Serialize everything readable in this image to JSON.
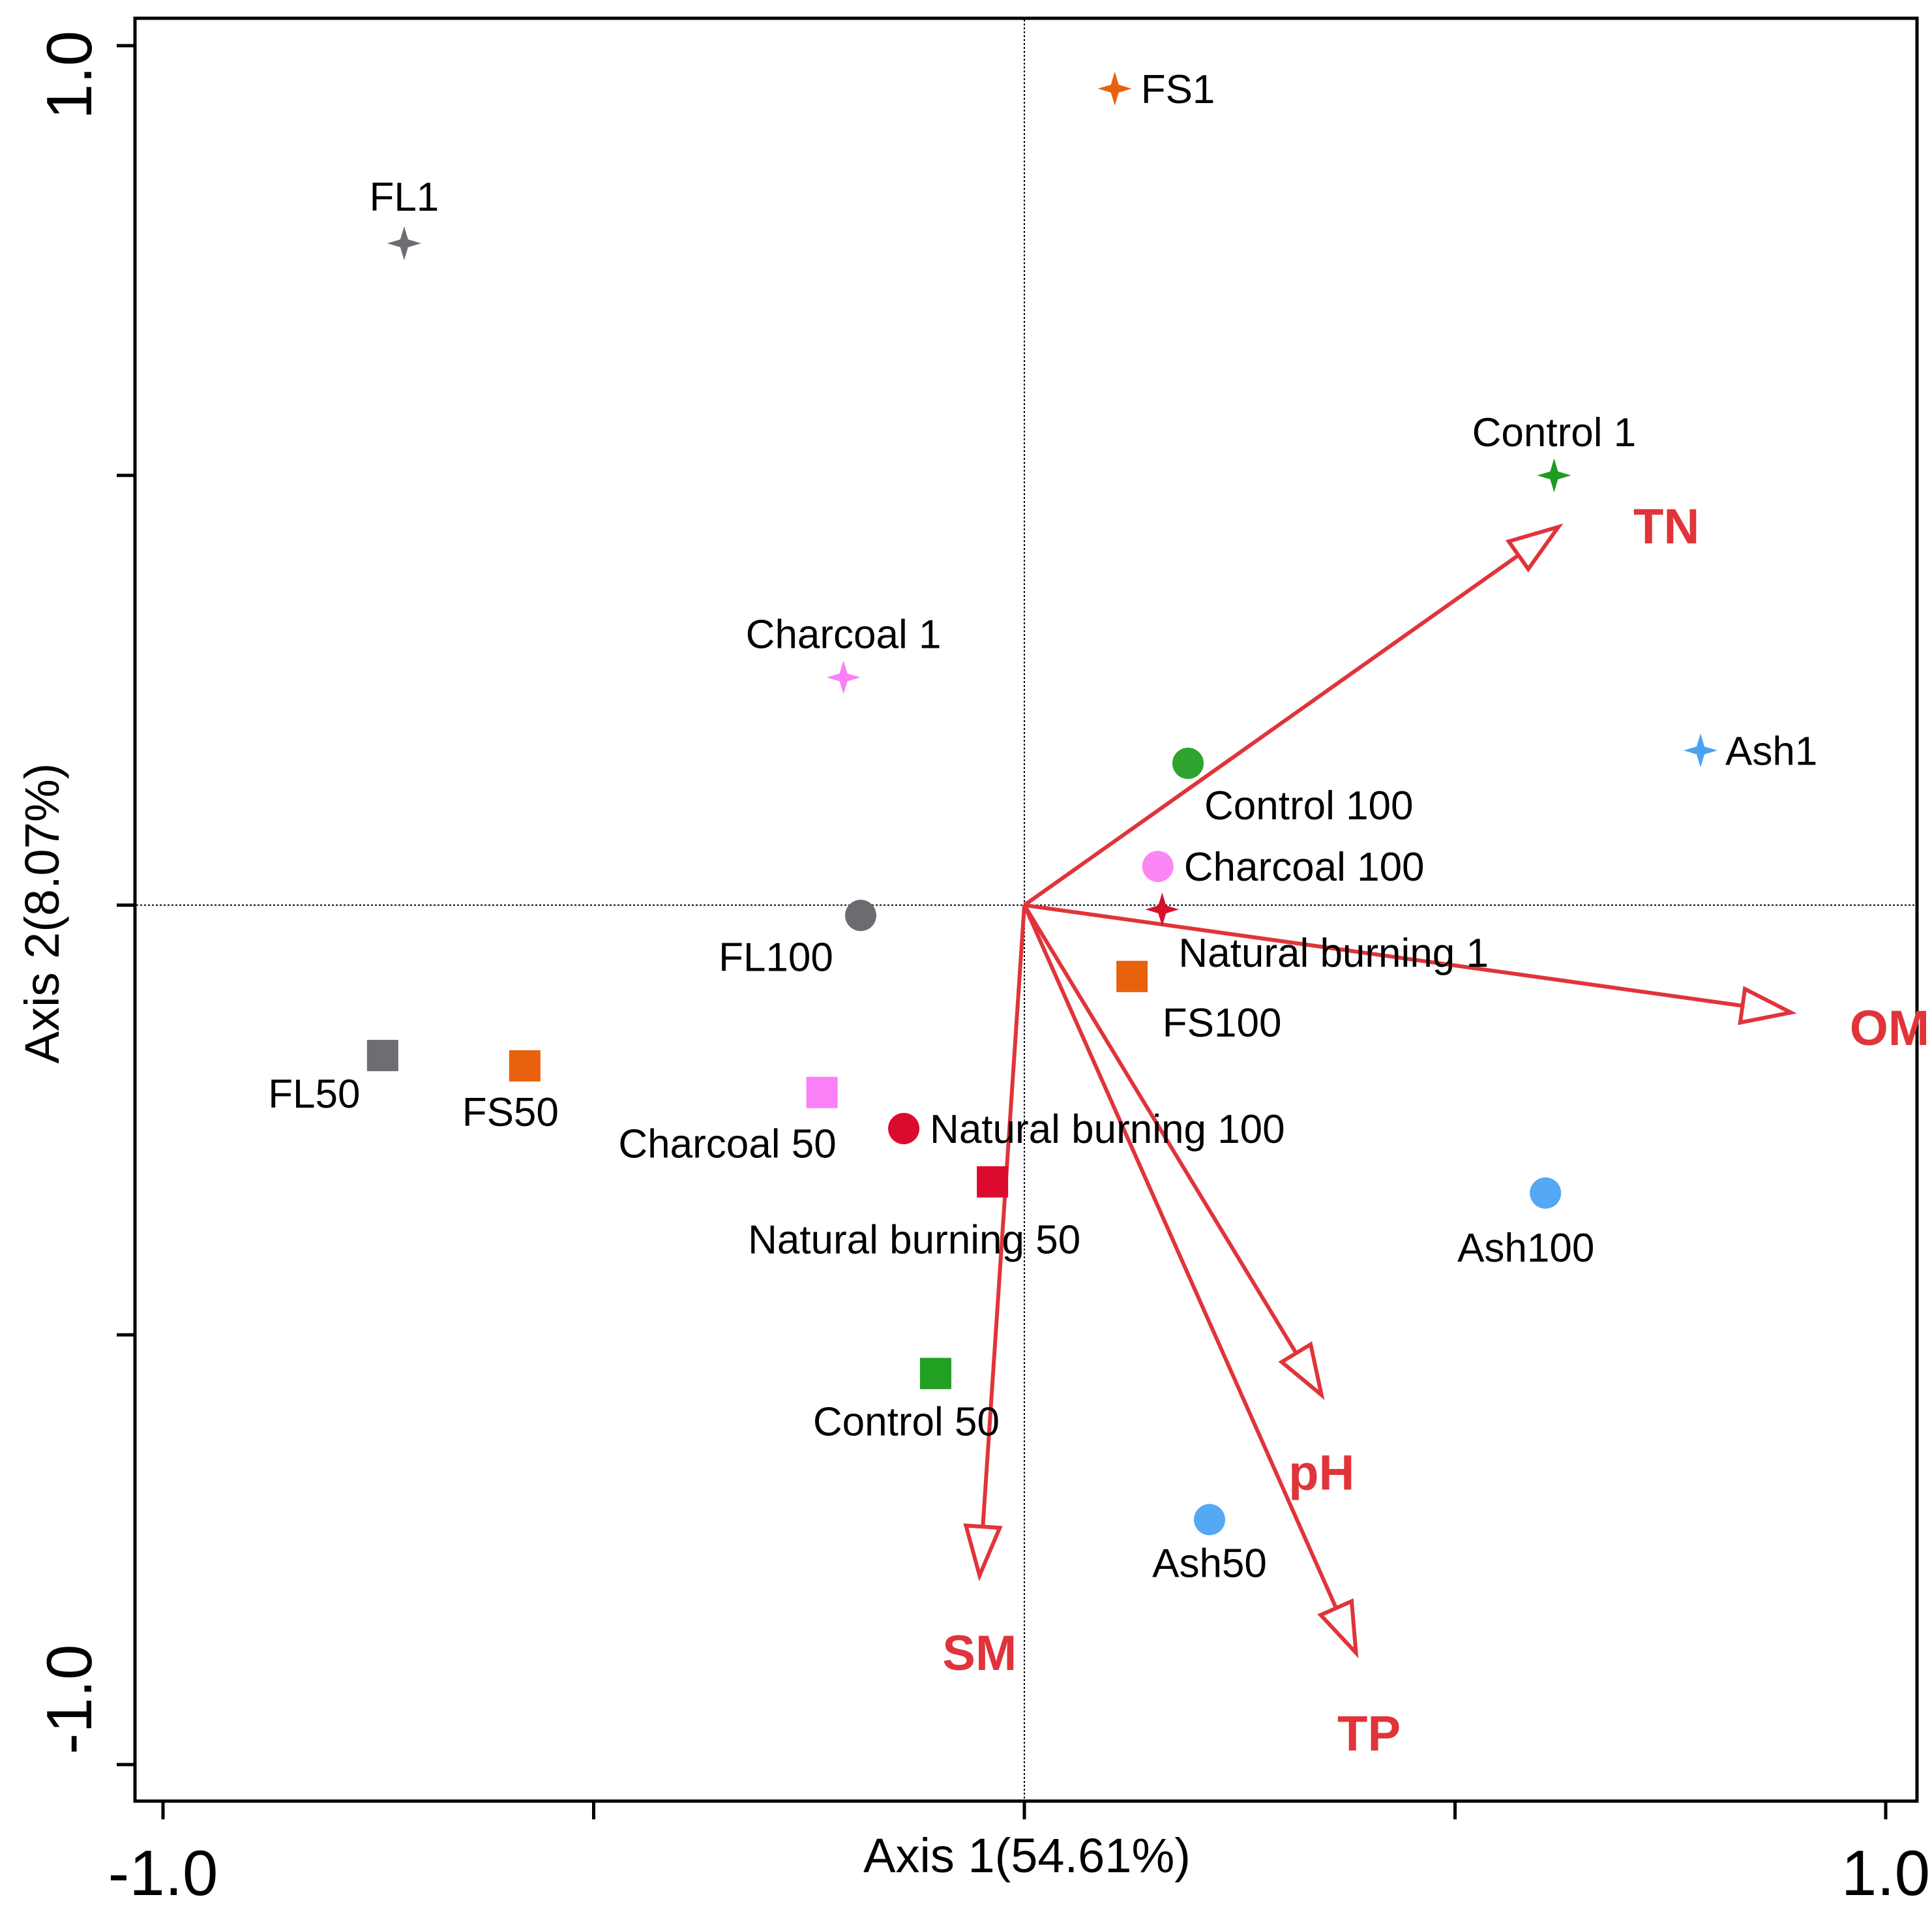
{
  "chart_data": {
    "type": "scatter",
    "subtype": "rda-biplot",
    "xlabel": "Axis 1(54.61%)",
    "ylabel": "Axis 2(8.07%)",
    "xlim": [
      -1.0,
      1.0
    ],
    "ylim": [
      -1.0,
      1.0
    ],
    "x_tick_labels": [
      "-1.0",
      "1.0"
    ],
    "y_tick_labels": [
      "1.0",
      "-1.0"
    ],
    "x_ticks": [
      -1.0,
      -0.5,
      0.0,
      0.5,
      1.0
    ],
    "y_ticks": [
      1.0,
      0.5,
      0.0,
      -0.5,
      -1.0
    ],
    "reference_lines": {
      "x": 0.0,
      "y": 0.0
    },
    "arrow_color": "#e0343a",
    "arrows": [
      {
        "name": "TN",
        "x": 0.62,
        "y": 0.44
      },
      {
        "name": "OM",
        "x": 0.89,
        "y": -0.125
      },
      {
        "name": "pH",
        "x": 0.345,
        "y": -0.57
      },
      {
        "name": "TP",
        "x": 0.385,
        "y": -0.87
      },
      {
        "name": "SM",
        "x": -0.052,
        "y": -0.78
      }
    ],
    "points": [
      {
        "label": "FS1",
        "x": 0.105,
        "y": 0.95,
        "marker": "star",
        "color": "#e8620e"
      },
      {
        "label": "FL1",
        "x": -0.72,
        "y": 0.77,
        "marker": "star",
        "color": "#6e6e72"
      },
      {
        "label": "Control 1",
        "x": 0.615,
        "y": 0.5,
        "marker": "star",
        "color": "#1f9b1f"
      },
      {
        "label": "Charcoal 1",
        "x": -0.21,
        "y": 0.265,
        "marker": "star",
        "color": "#fb80f7"
      },
      {
        "label": "Ash1",
        "x": 0.785,
        "y": 0.18,
        "marker": "star",
        "color": "#4aa3f2"
      },
      {
        "label": "Natural burning 1",
        "x": 0.16,
        "y": -0.005,
        "marker": "star",
        "color": "#d8102d"
      },
      {
        "label": "Control 100",
        "x": 0.19,
        "y": 0.165,
        "marker": "circle",
        "color": "#2ea32e"
      },
      {
        "label": "Charcoal 100",
        "x": 0.155,
        "y": 0.045,
        "marker": "circle",
        "color": "#fc86f4"
      },
      {
        "label": "FL100",
        "x": -0.19,
        "y": -0.012,
        "marker": "circle",
        "color": "#6c6c70"
      },
      {
        "label": "Natural burning 100",
        "x": -0.14,
        "y": -0.26,
        "marker": "circle",
        "color": "#dc0a2d"
      },
      {
        "label": "Ash100",
        "x": 0.605,
        "y": -0.335,
        "marker": "circle",
        "color": "#54a8f4"
      },
      {
        "label": "Ash50",
        "x": 0.215,
        "y": -0.715,
        "marker": "circle",
        "color": "#54a8f4"
      },
      {
        "label": "FS100",
        "x": 0.125,
        "y": -0.083,
        "marker": "square",
        "color": "#e8620e"
      },
      {
        "label": "FL50",
        "x": -0.745,
        "y": -0.175,
        "marker": "square",
        "color": "#6e6e72"
      },
      {
        "label": "FS50",
        "x": -0.58,
        "y": -0.187,
        "marker": "square",
        "color": "#e8620e"
      },
      {
        "label": "Charcoal 50",
        "x": -0.235,
        "y": -0.218,
        "marker": "square",
        "color": "#fb80f7"
      },
      {
        "label": "Natural burning 50",
        "x": -0.037,
        "y": -0.322,
        "marker": "square",
        "color": "#dc0a2d"
      },
      {
        "label": "Control 50",
        "x": -0.103,
        "y": -0.545,
        "marker": "square",
        "color": "#21a021"
      }
    ]
  }
}
